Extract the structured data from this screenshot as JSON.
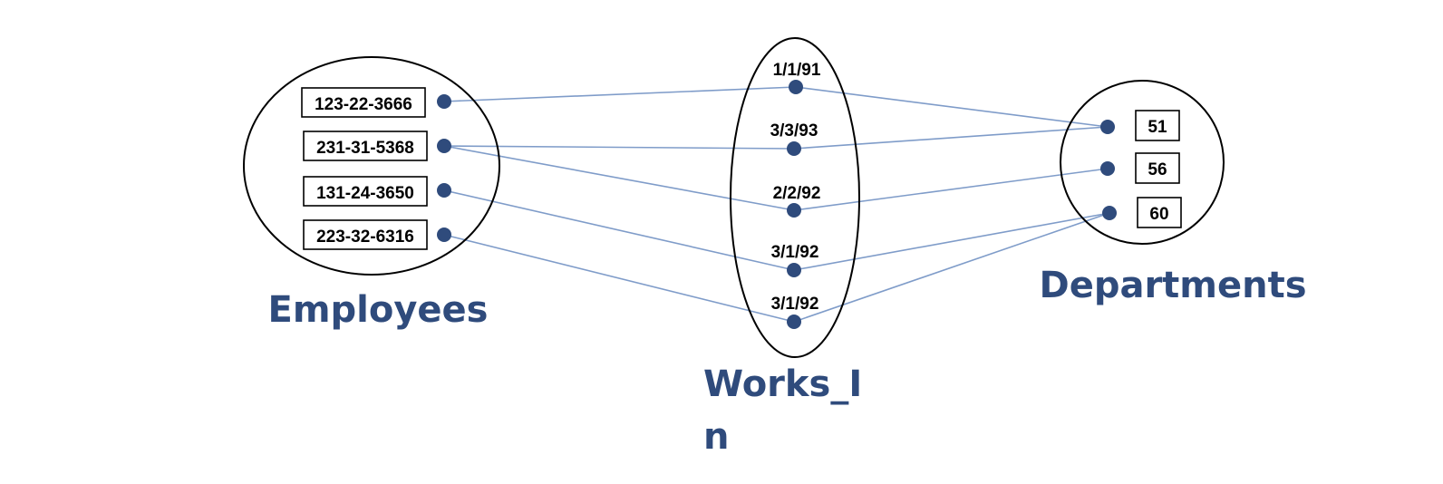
{
  "sets": {
    "employees": {
      "label": "Employees",
      "items": [
        "123-22-3666",
        "231-31-5368",
        "131-24-3650",
        "223-32-6316"
      ]
    },
    "works_in": {
      "label_line1": "Works_I",
      "label_line2": "n",
      "items": [
        "1/1/91",
        "3/3/93",
        "2/2/92",
        "3/1/92",
        "3/1/92"
      ]
    },
    "departments": {
      "label": "Departments",
      "items": [
        "51",
        "56",
        "60"
      ]
    }
  },
  "relationships": [
    {
      "employee": "123-22-3666",
      "since": "1/1/91",
      "dept": "51"
    },
    {
      "employee": "231-31-5368",
      "since": "3/3/93",
      "dept": "51"
    },
    {
      "employee": "231-31-5368",
      "since": "2/2/92",
      "dept": "56"
    },
    {
      "employee": "131-24-3650",
      "since": "3/1/92",
      "dept": "60"
    },
    {
      "employee": "223-32-6316",
      "since": "3/1/92",
      "dept": "60"
    }
  ],
  "colors": {
    "label": "#2f4b7c",
    "dot": "#2f4b7c",
    "line": "#7f9cc9",
    "outline": "#000000"
  }
}
